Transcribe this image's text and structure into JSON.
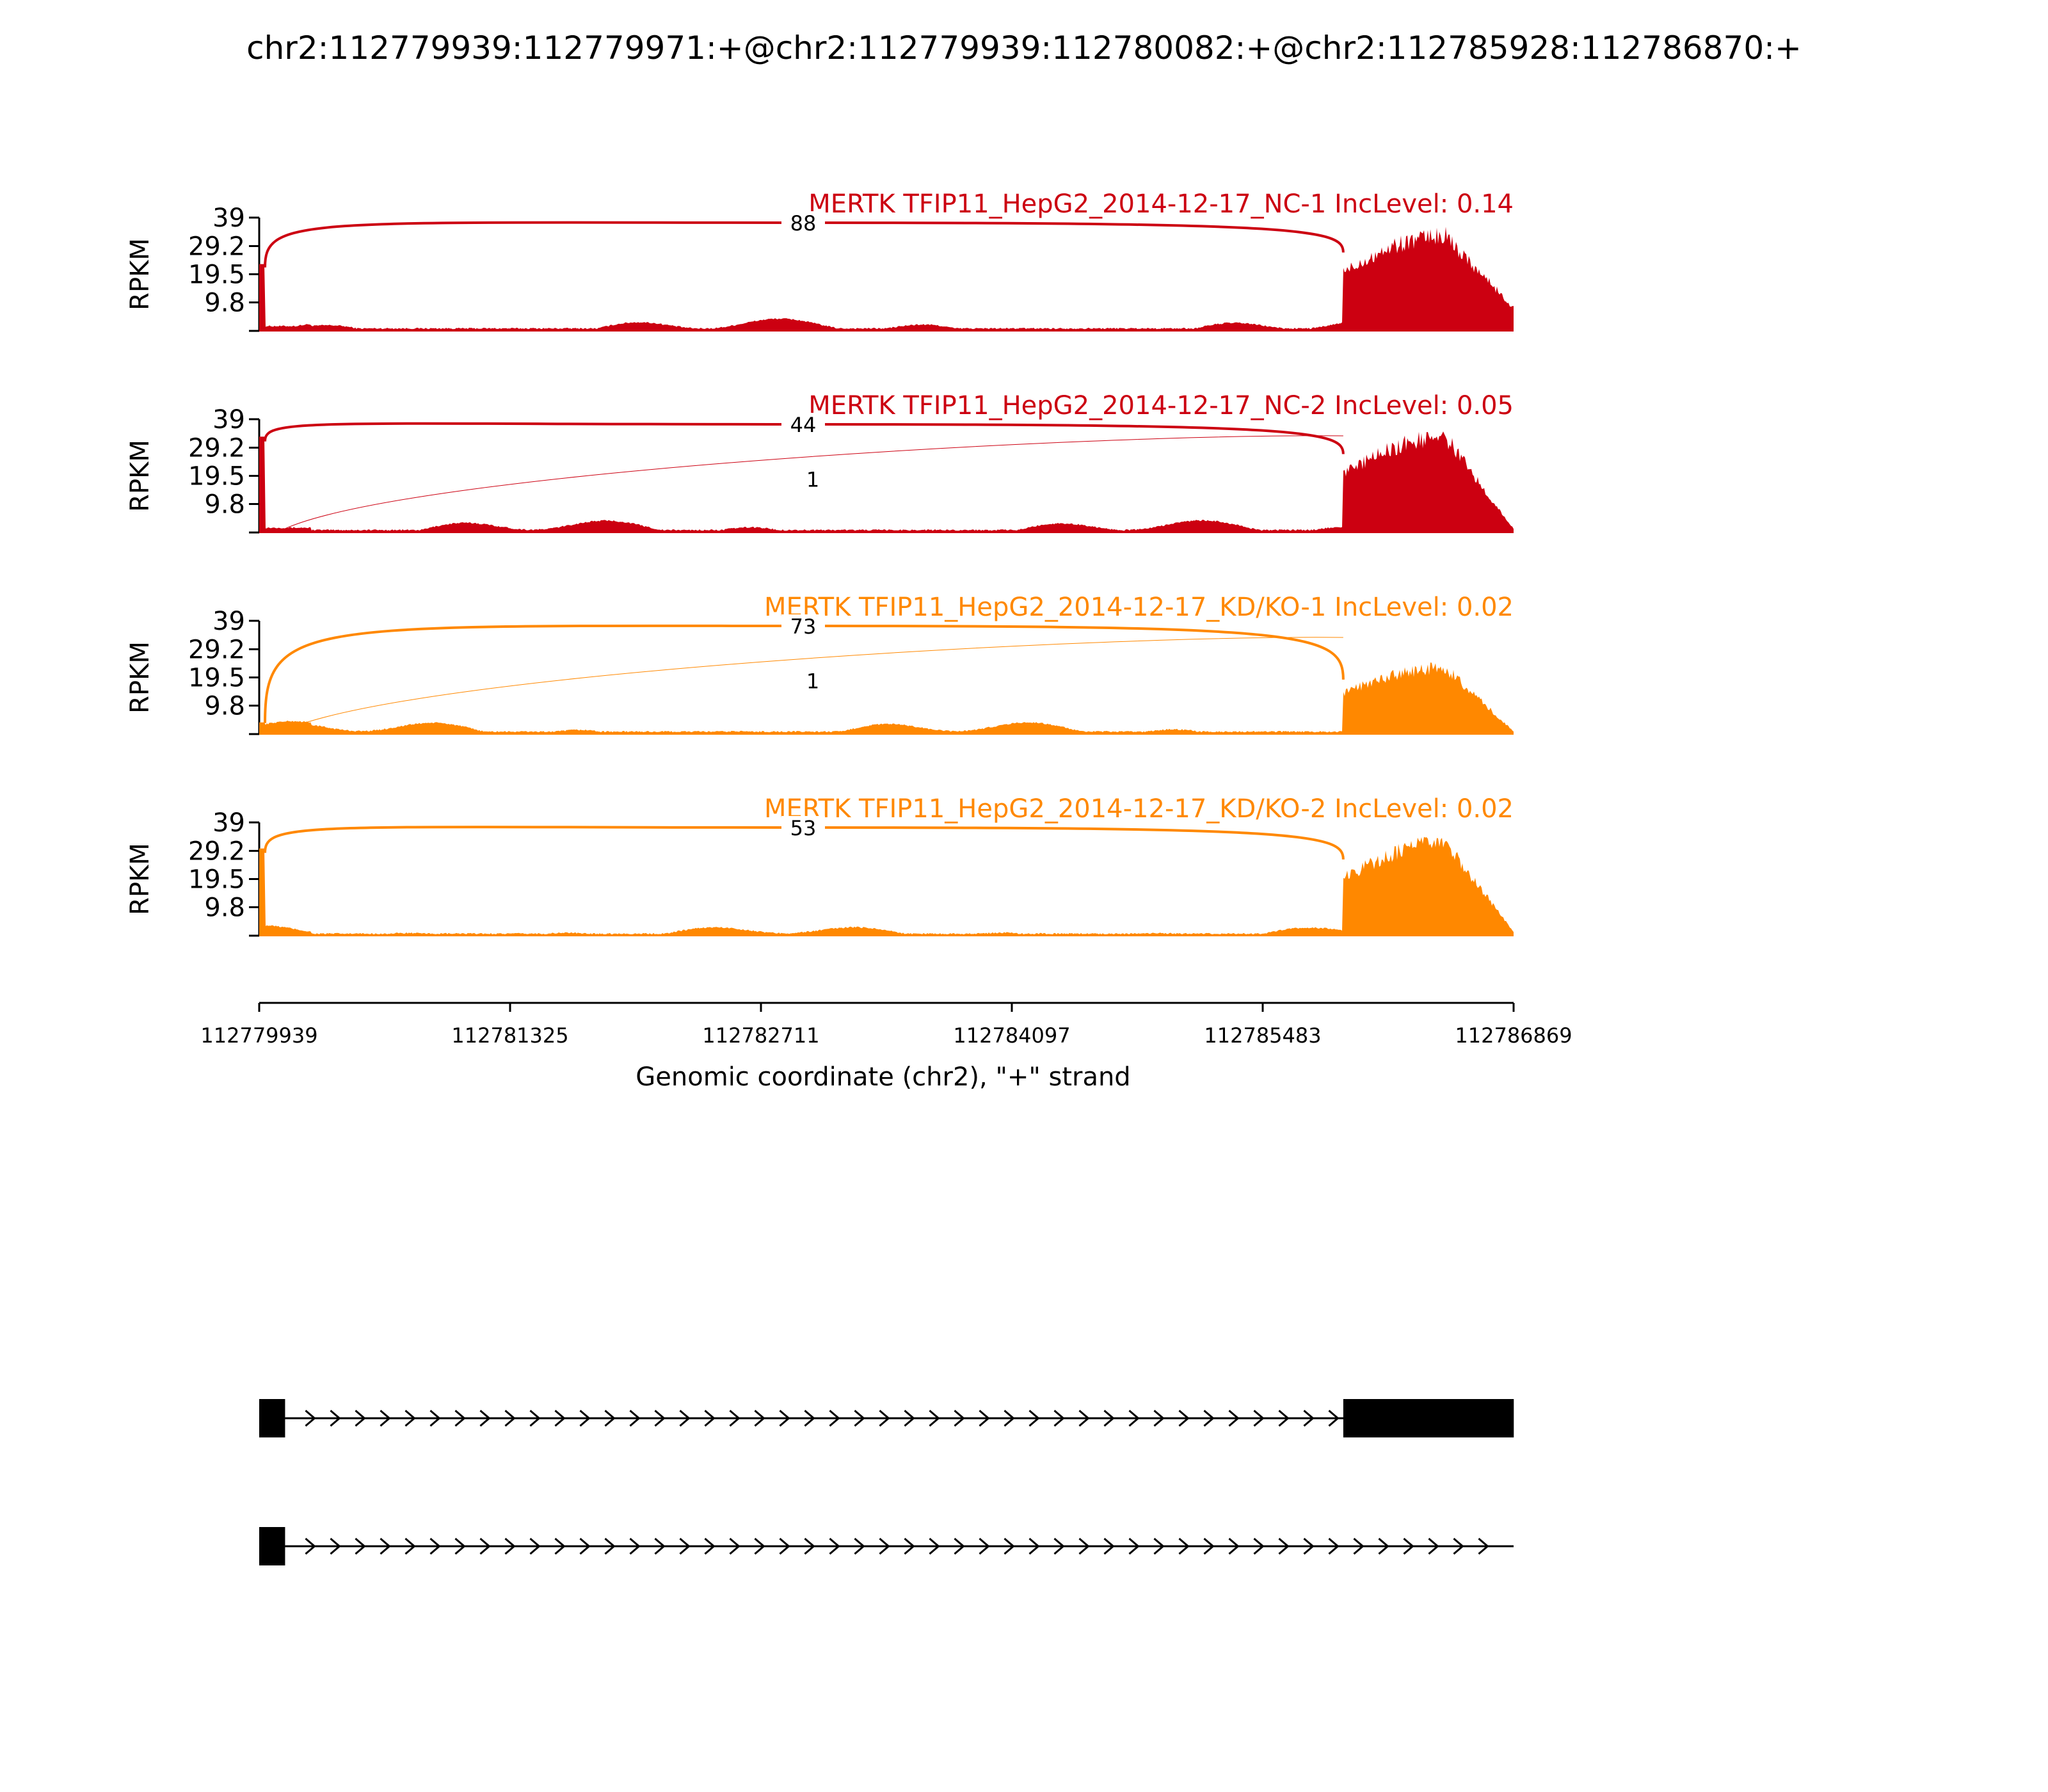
{
  "title": "chr2:112779939:112779971:+@chr2:112779939:112780082:+@chr2:112785928:112786870:+",
  "x_axis": {
    "label": "Genomic coordinate (chr2), \"+\" strand",
    "ticks": [
      112779939,
      112781325,
      112782711,
      112784097,
      112785483,
      112786869
    ],
    "range": [
      112779939,
      112786869
    ]
  },
  "y_axis": {
    "label": "RPKM",
    "ticks": [
      "39",
      "29.2",
      "19.5",
      "9.8"
    ],
    "range": [
      0,
      39
    ]
  },
  "chart_data": {
    "type": "area",
    "xlim": [
      112779939,
      112786869
    ],
    "ylim": [
      0,
      39
    ],
    "tracks": [
      {
        "title": "MERTK TFIP11_HepG2_2014-12-17_NC-1 IncLevel: 0.14",
        "color": "#cc0011",
        "coverage_levels": {
          "exon1": 23,
          "intron": 2,
          "exon3_peak": 36
        },
        "junctions": [
          {
            "from": 112779971,
            "to": 112785928,
            "count": "88",
            "weight": "thick"
          }
        ]
      },
      {
        "title": "MERTK TFIP11_HepG2_2014-12-17_NC-2 IncLevel: 0.05",
        "color": "#cc0011",
        "coverage_levels": {
          "exon1": 33,
          "intron": 2,
          "exon3_peak": 36
        },
        "junctions": [
          {
            "from": 112779971,
            "to": 112785928,
            "count": "44",
            "weight": "thick"
          },
          {
            "from": 112780082,
            "to": 112785928,
            "count": "1",
            "weight": "thin"
          }
        ]
      },
      {
        "title": "MERTK TFIP11_HepG2_2014-12-17_KD/KO-1 IncLevel: 0.02",
        "color": "#ff8800",
        "coverage_levels": {
          "exon1": 4,
          "intron": 2,
          "exon3_peak": 25
        },
        "junctions": [
          {
            "from": 112779971,
            "to": 112785928,
            "count": "73",
            "weight": "thick"
          },
          {
            "from": 112780082,
            "to": 112785928,
            "count": "1",
            "weight": "thin"
          }
        ]
      },
      {
        "title": "MERTK TFIP11_HepG2_2014-12-17_KD/KO-2 IncLevel: 0.02",
        "color": "#ff8800",
        "coverage_levels": {
          "exon1": 30,
          "intron": 1.5,
          "exon3_peak": 35
        },
        "junctions": [
          {
            "from": 112779971,
            "to": 112785928,
            "count": "53",
            "weight": "thick"
          }
        ]
      }
    ],
    "isoforms": [
      {
        "exons": [
          [
            112779939,
            112780082
          ],
          [
            112785928,
            112786870
          ]
        ],
        "intron_end": 112785928
      },
      {
        "exons": [
          [
            112779939,
            112780082
          ]
        ],
        "intron_end": 112786870
      }
    ]
  }
}
